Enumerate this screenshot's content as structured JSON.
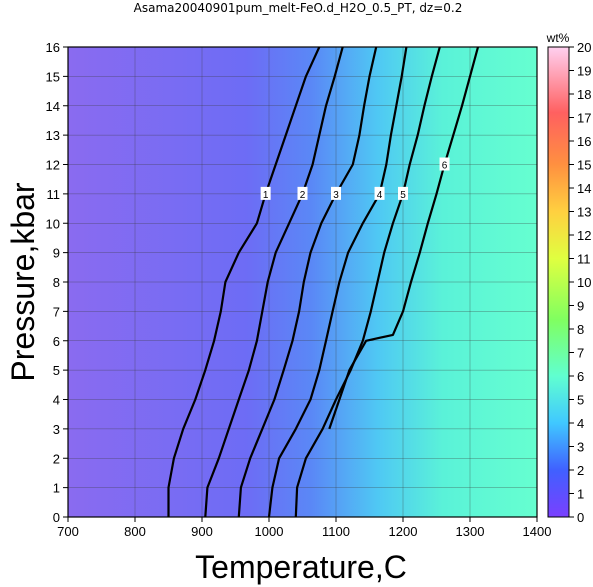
{
  "chart_data": {
    "type": "contour",
    "title": "Asama20040901pum_melt-FeO.d_H2O_0.5_PT, dz=0.2",
    "xlabel": "Temperature,C",
    "ylabel": "Pressure,kbar",
    "xlim": [
      700,
      1400
    ],
    "ylim": [
      0,
      16
    ],
    "x_ticks": [
      "700",
      "800",
      "900",
      "1000",
      "1100",
      "1200",
      "1300",
      "1400"
    ],
    "y_ticks": [
      "0",
      "1",
      "2",
      "3",
      "4",
      "5",
      "6",
      "7",
      "8",
      "9",
      "10",
      "11",
      "12",
      "13",
      "14",
      "15",
      "16"
    ],
    "grid": true,
    "colorbar": {
      "label": "wt%",
      "range": [
        0,
        20
      ],
      "ticks": [
        "0",
        "1",
        "2",
        "3",
        "4",
        "5",
        "6",
        "7",
        "8",
        "9",
        "10",
        "11",
        "12",
        "13",
        "14",
        "15",
        "16",
        "17",
        "18",
        "19",
        "20"
      ]
    },
    "contours": [
      {
        "level": "1",
        "points": [
          [
            850,
            0
          ],
          [
            850,
            1
          ],
          [
            858,
            2
          ],
          [
            872,
            3
          ],
          [
            890,
            4
          ],
          [
            905,
            5
          ],
          [
            918,
            6
          ],
          [
            928,
            7
          ],
          [
            935,
            8
          ],
          [
            955,
            9
          ],
          [
            982,
            10
          ],
          [
            995,
            11
          ],
          [
            1010,
            12
          ],
          [
            1025,
            13
          ],
          [
            1040,
            14
          ],
          [
            1055,
            15
          ],
          [
            1075,
            16
          ]
        ]
      },
      {
        "level": "2",
        "points": [
          [
            905,
            0
          ],
          [
            908,
            1
          ],
          [
            925,
            2
          ],
          [
            940,
            3
          ],
          [
            955,
            4
          ],
          [
            970,
            5
          ],
          [
            982,
            6
          ],
          [
            990,
            7
          ],
          [
            998,
            8
          ],
          [
            1010,
            9
          ],
          [
            1030,
            10
          ],
          [
            1050,
            11
          ],
          [
            1065,
            12
          ],
          [
            1075,
            13
          ],
          [
            1085,
            14
          ],
          [
            1098,
            15
          ],
          [
            1110,
            16
          ]
        ]
      },
      {
        "level": "3",
        "points": [
          [
            955,
            0
          ],
          [
            958,
            1
          ],
          [
            972,
            2
          ],
          [
            990,
            3
          ],
          [
            1008,
            4
          ],
          [
            1022,
            5
          ],
          [
            1035,
            6
          ],
          [
            1045,
            7
          ],
          [
            1052,
            8
          ],
          [
            1062,
            9
          ],
          [
            1078,
            10
          ],
          [
            1100,
            11
          ],
          [
            1125,
            12
          ],
          [
            1135,
            13
          ],
          [
            1142,
            14
          ],
          [
            1150,
            15
          ],
          [
            1160,
            16
          ]
        ]
      },
      {
        "level": "4",
        "points": [
          [
            1000,
            0
          ],
          [
            1005,
            1
          ],
          [
            1015,
            2
          ],
          [
            1040,
            3
          ],
          [
            1062,
            4
          ],
          [
            1075,
            5
          ],
          [
            1085,
            6
          ],
          [
            1095,
            7
          ],
          [
            1105,
            8
          ],
          [
            1118,
            9
          ],
          [
            1140,
            10
          ],
          [
            1165,
            11
          ],
          [
            1175,
            12
          ],
          [
            1182,
            13
          ],
          [
            1190,
            14
          ],
          [
            1198,
            15
          ],
          [
            1205,
            16
          ]
        ]
      },
      {
        "level": "5",
        "points": [
          [
            1040,
            0
          ],
          [
            1042,
            1
          ],
          [
            1055,
            2
          ],
          [
            1080,
            3
          ],
          [
            1100,
            4
          ],
          [
            1122,
            5
          ],
          [
            1140,
            6
          ],
          [
            1152,
            7
          ],
          [
            1162,
            8
          ],
          [
            1172,
            9
          ],
          [
            1185,
            10
          ],
          [
            1200,
            11
          ],
          [
            1210,
            12
          ],
          [
            1222,
            13
          ],
          [
            1232,
            14
          ],
          [
            1243,
            15
          ],
          [
            1255,
            16
          ]
        ]
      },
      {
        "level": "6",
        "points": [
          [
            1090,
            3
          ],
          [
            1105,
            4
          ],
          [
            1120,
            5
          ],
          [
            1145,
            6
          ],
          [
            1185,
            6.2
          ],
          [
            1200,
            7
          ],
          [
            1212,
            8
          ],
          [
            1225,
            9
          ],
          [
            1237,
            10
          ],
          [
            1250,
            11
          ],
          [
            1262,
            12
          ],
          [
            1275,
            13
          ],
          [
            1288,
            14
          ],
          [
            1300,
            15
          ],
          [
            1312,
            16
          ]
        ]
      }
    ]
  }
}
